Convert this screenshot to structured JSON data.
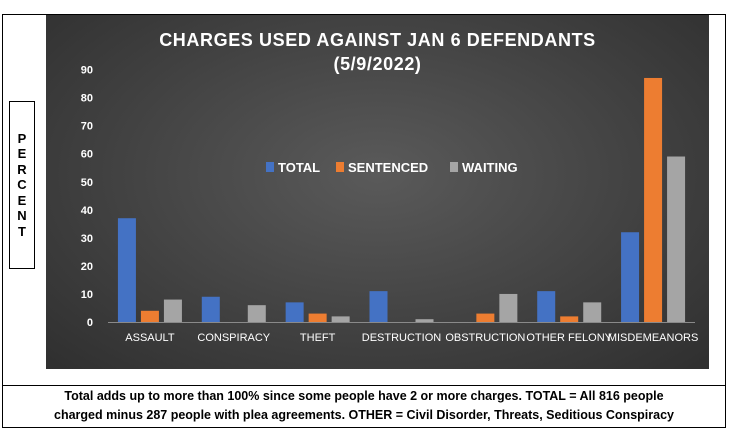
{
  "chart_data": {
    "type": "bar",
    "title_line1": "CHARGES USED AGAINST JAN 6 DEFENDANTS",
    "title_line2": "(5/9/2022)",
    "ylabel": "PERCENT",
    "categories": [
      "ASSAULT",
      "CONSPIRACY",
      "THEFT",
      "DESTRUCTION",
      "OBSTRUCTION",
      "OTHER FELONY",
      "MISDEMEANORS"
    ],
    "series": [
      {
        "name": "TOTAL",
        "color": "#4472c4",
        "values": [
          37,
          9,
          7,
          11,
          0,
          11,
          32
        ]
      },
      {
        "name": "SENTENCED",
        "color": "#ed7d31",
        "values": [
          4,
          0,
          3,
          0,
          3,
          2,
          87
        ]
      },
      {
        "name": "WAITING",
        "color": "#a5a5a5",
        "values": [
          8,
          6,
          2,
          1,
          10,
          7,
          59
        ]
      }
    ],
    "ylim": [
      0,
      90
    ],
    "yticks": [
      0,
      10,
      20,
      30,
      40,
      50,
      60,
      70,
      80,
      90
    ],
    "grid": false,
    "legend_position": "center"
  },
  "footnote": {
    "line1": "Total adds up to more than 100% since some people have 2 or more charges. TOTAL = All 816 people",
    "line2": "charged minus 287 people with plea agreements. OTHER = Civil Disorder, Threats, Seditious Conspiracy"
  }
}
